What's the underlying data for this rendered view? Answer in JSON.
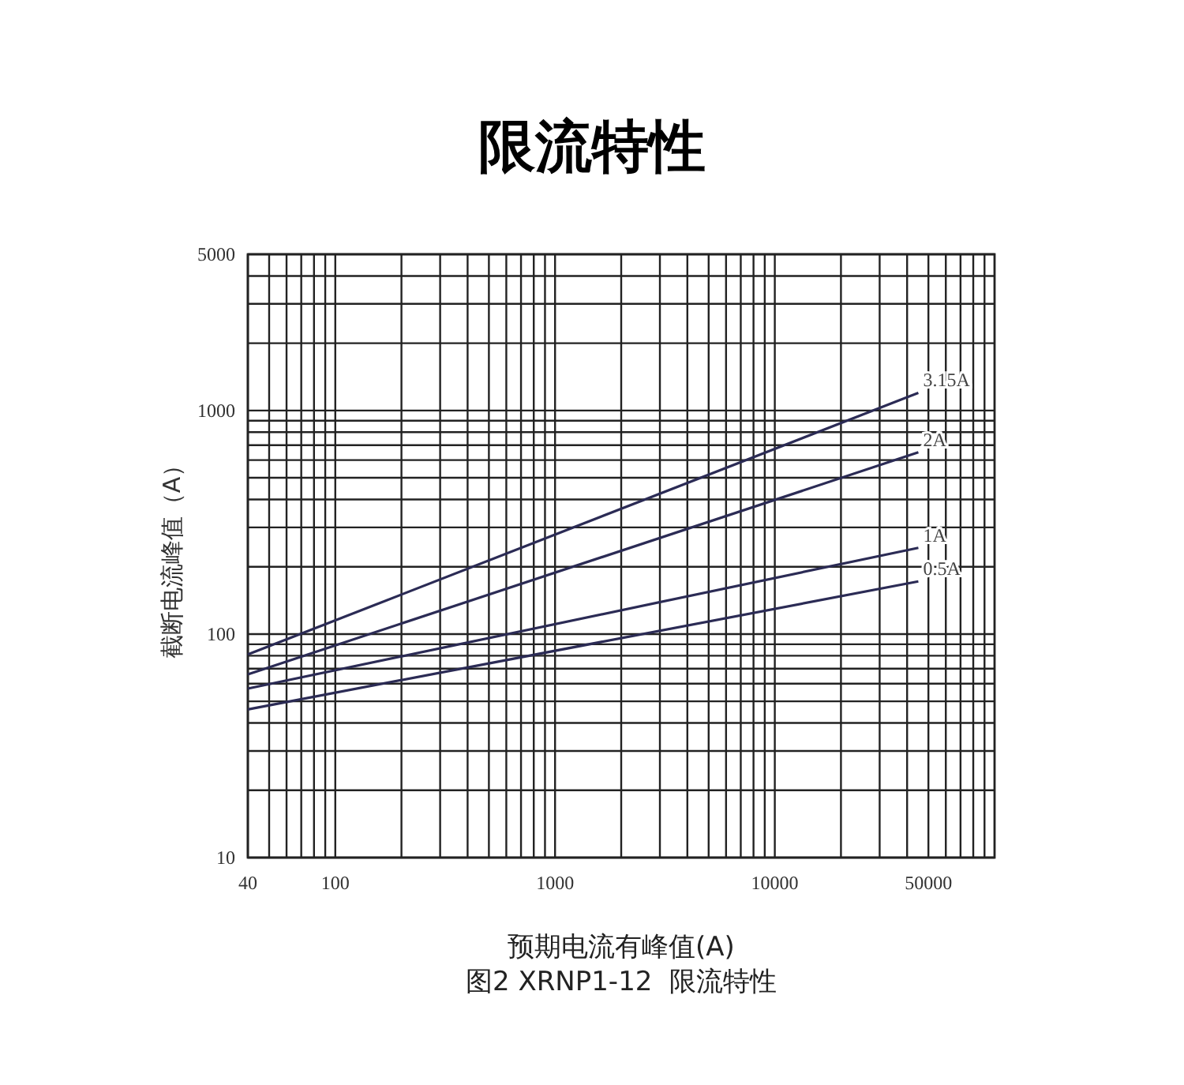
{
  "chart_data": {
    "type": "line",
    "title": "限流特性",
    "xlabel": "预期电流有峰值(A)",
    "ylabel": "截断电流峰值（A）",
    "annotations": [
      "图2 XRNP1-12  限流特性"
    ],
    "log": "xy",
    "grid": true,
    "marker": "none",
    "line_style": "solid",
    "xlim": [
      40,
      100000
    ],
    "ylim": [
      10,
      5000
    ],
    "xticks": [
      40,
      {
        "value": 50,
        "label": null
      },
      {
        "value": 60,
        "label": null
      },
      {
        "value": 70,
        "label": null
      },
      {
        "value": 80,
        "label": null
      },
      {
        "value": 90,
        "label": null
      },
      100,
      {
        "value": 200,
        "label": null
      },
      {
        "value": 300,
        "label": null
      },
      {
        "value": 400,
        "label": null
      },
      {
        "value": 500,
        "label": null
      },
      {
        "value": 600,
        "label": null
      },
      {
        "value": 700,
        "label": null
      },
      {
        "value": 800,
        "label": null
      },
      {
        "value": 900,
        "label": null
      },
      1000,
      {
        "value": 2000,
        "label": null
      },
      {
        "value": 3000,
        "label": null
      },
      {
        "value": 4000,
        "label": null
      },
      {
        "value": 5000,
        "label": null
      },
      {
        "value": 6000,
        "label": null
      },
      {
        "value": 7000,
        "label": null
      },
      {
        "value": 8000,
        "label": null
      },
      {
        "value": 9000,
        "label": null
      },
      10000,
      {
        "value": 20000,
        "label": null
      },
      {
        "value": 30000,
        "label": null
      },
      {
        "value": 40000,
        "label": null
      },
      50000,
      {
        "value": 60000,
        "label": null
      },
      {
        "value": 70000,
        "label": null
      },
      {
        "value": 80000,
        "label": null
      },
      {
        "value": 90000,
        "label": null
      }
    ],
    "yticks": [
      10,
      {
        "value": 20,
        "label": null
      },
      {
        "value": 30,
        "label": null
      },
      {
        "value": 40,
        "label": null
      },
      {
        "value": 50,
        "label": null
      },
      {
        "value": 60,
        "label": null
      },
      {
        "value": 70,
        "label": null
      },
      {
        "value": 80,
        "label": null
      },
      {
        "value": 90,
        "label": null
      },
      100,
      {
        "value": 200,
        "label": null
      },
      {
        "value": 300,
        "label": null
      },
      {
        "value": 400,
        "label": null
      },
      {
        "value": 500,
        "label": null
      },
      {
        "value": 600,
        "label": null
      },
      {
        "value": 700,
        "label": null
      },
      {
        "value": 800,
        "label": null
      },
      {
        "value": 900,
        "label": null
      },
      1000,
      {
        "value": 2000,
        "label": null
      },
      {
        "value": 3000,
        "label": null
      },
      {
        "value": 4000,
        "label": null
      },
      5000
    ],
    "x": [
      40,
      45000
    ],
    "series": [
      {
        "name": "3.15A",
        "color": "#2b2b55",
        "values": [
          81,
          1200
        ]
      },
      {
        "name": "2A",
        "color": "#2b2b55",
        "values": [
          66,
          650
        ]
      },
      {
        "name": "1A",
        "color": "#2b2b55",
        "values": [
          57,
          243
        ]
      },
      {
        "name": "0.5A",
        "color": "#2b2b55",
        "values": [
          46,
          172
        ]
      }
    ]
  }
}
